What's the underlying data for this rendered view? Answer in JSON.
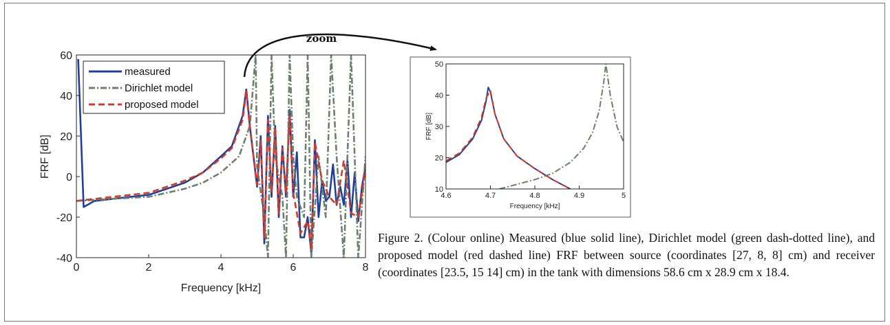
{
  "zoom_label": "zoom",
  "caption": "Figure 2. (Colour online) Measured (blue solid line), Dirichlet model (green dash-dotted line), and proposed model (red dashed line) FRF between source (coordinates [27, 8, 8] cm) and receiver (coordinates [23.5, 15 14] cm) in the tank with dimensions 58.6 cm x 28.9 cm x 18.4.",
  "colors": {
    "measured": "#1f3f9a",
    "dirichlet": "#6a806a",
    "proposed": "#d23a2a"
  },
  "chart_data": [
    {
      "type": "line",
      "xlabel": "Frequency [kHz]",
      "ylabel": "FRF [dB]",
      "xlim": [
        0,
        8
      ],
      "ylim": [
        -40,
        60
      ],
      "xticks": [
        "0",
        "2",
        "4",
        "6",
        "8"
      ],
      "yticks": [
        "-40",
        "-20",
        "0",
        "20",
        "40",
        "60"
      ],
      "legend_position": "top-left",
      "series": [
        {
          "name": "measured",
          "style": "solid",
          "x": [
            0.05,
            0.2,
            0.5,
            1,
            2,
            3,
            3.5,
            4,
            4.3,
            4.6,
            4.7,
            4.8,
            5,
            5.1,
            5.2,
            5.3,
            5.4,
            5.5,
            5.6,
            5.7,
            5.8,
            5.9,
            6,
            6.1,
            6.2,
            6.3,
            6.4,
            6.5,
            6.6,
            6.7,
            6.8,
            6.9,
            7,
            7.1,
            7.2,
            7.3,
            7.4,
            7.5,
            7.6,
            7.7,
            7.8,
            7.9,
            8
          ],
          "y": [
            58,
            -15,
            -12,
            -11,
            -9,
            -3,
            2,
            10,
            15,
            30,
            43,
            25,
            -5,
            20,
            -33,
            30,
            -10,
            25,
            -20,
            15,
            -10,
            33,
            -10,
            12,
            -30,
            -30,
            -20,
            -38,
            18,
            -20,
            -2,
            -12,
            -10,
            6,
            -14,
            -5,
            -14,
            8,
            -20,
            2,
            -22,
            -5,
            5
          ]
        },
        {
          "name": "Dirichlet model",
          "style": "dash-dot",
          "x": [
            0,
            1,
            2,
            3,
            3.5,
            4,
            4.5,
            4.8,
            4.96,
            5,
            5.2,
            5.3,
            5.4,
            5.5,
            5.7,
            5.8,
            5.9,
            6,
            6.1,
            6.3,
            6.4,
            6.5,
            6.7,
            6.9,
            7.05,
            7.2,
            7.4,
            7.6,
            7.8,
            8
          ],
          "y": [
            -12,
            -11,
            -10,
            -6,
            -3,
            2,
            10,
            25,
            60,
            5,
            -20,
            -40,
            60,
            10,
            -10,
            -40,
            60,
            10,
            -10,
            -20,
            60,
            -40,
            10,
            -20,
            60,
            10,
            -40,
            60,
            -40,
            10
          ]
        },
        {
          "name": "proposed model",
          "style": "dashed",
          "x": [
            0,
            1,
            2,
            3,
            3.5,
            4,
            4.3,
            4.6,
            4.7,
            4.8,
            5,
            5.1,
            5.2,
            5.3,
            5.4,
            5.5,
            5.6,
            5.7,
            5.8,
            5.9,
            6,
            6.2,
            6.4,
            6.5,
            6.6,
            6.8,
            7,
            7.2,
            7.4,
            7.6,
            7.8,
            8
          ],
          "y": [
            -12,
            -10,
            -8,
            -2,
            2,
            9,
            14,
            28,
            42,
            24,
            -4,
            18,
            -30,
            28,
            -8,
            24,
            -18,
            14,
            -8,
            30,
            -8,
            -28,
            -22,
            -36,
            17,
            -2,
            -10,
            -14,
            8,
            -18,
            -20,
            4
          ]
        }
      ]
    },
    {
      "type": "line",
      "xlabel": "Frequency [kHz]",
      "ylabel": "FRF [dB]",
      "xlim": [
        4.6,
        5
      ],
      "ylim": [
        10,
        50
      ],
      "xticks": [
        "4.6",
        "4.7",
        "4.8",
        "4.9",
        "5"
      ],
      "yticks": [
        "10",
        "20",
        "30",
        "40",
        "50"
      ],
      "series": [
        {
          "name": "measured",
          "style": "solid",
          "x": [
            4.6,
            4.63,
            4.66,
            4.68,
            4.69,
            4.695,
            4.7,
            4.71,
            4.73,
            4.76,
            4.8,
            4.84,
            4.88
          ],
          "y": [
            18.5,
            21,
            26,
            32,
            38,
            42.5,
            41,
            34,
            26,
            20.5,
            16.5,
            13,
            10
          ]
        },
        {
          "name": "Dirichlet model",
          "style": "dash-dot",
          "x": [
            4.72,
            4.76,
            4.8,
            4.84,
            4.88,
            4.91,
            4.93,
            4.945,
            4.955,
            4.96,
            4.97,
            4.985,
            5.0
          ],
          "y": [
            10,
            11.5,
            13,
            15,
            18.5,
            23,
            28,
            35,
            44,
            50,
            40,
            30,
            25
          ]
        },
        {
          "name": "proposed model",
          "style": "dashed",
          "x": [
            4.6,
            4.63,
            4.66,
            4.68,
            4.69,
            4.7,
            4.71,
            4.73,
            4.76,
            4.8,
            4.84,
            4.88
          ],
          "y": [
            19,
            21.5,
            26.5,
            33,
            39,
            41.5,
            34,
            26,
            20.5,
            16.5,
            13,
            10
          ]
        }
      ]
    }
  ]
}
